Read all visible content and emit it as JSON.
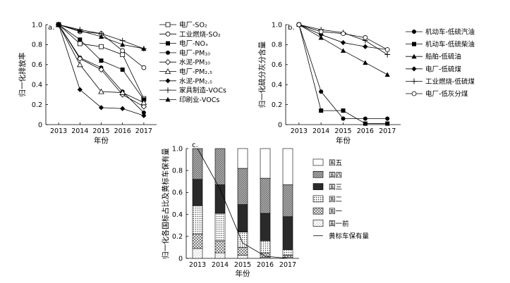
{
  "chart_data": [
    {
      "panel": "a.",
      "type": "line",
      "title": "",
      "xlabel": "年份",
      "ylabel": "归一化排放率",
      "x": [
        2013,
        2014,
        2015,
        2016,
        2017
      ],
      "xlim": [
        2012.4,
        2017.6
      ],
      "ylim": [
        0,
        1.0
      ],
      "yticks": [
        0,
        0.2,
        0.4,
        0.6,
        0.8,
        1.0
      ],
      "ytick_labels": [
        "0",
        "0.2",
        "0.4",
        "0.6",
        "0.8",
        "1.0"
      ],
      "legend_position": "right",
      "series": [
        {
          "name": "电厂-SO₂",
          "marker": "square-open",
          "values": [
            1.0,
            0.81,
            0.78,
            0.7,
            0.26
          ]
        },
        {
          "name": "工业燃烧-SO₂",
          "marker": "circle-open",
          "values": [
            1.0,
            0.93,
            0.91,
            0.74,
            0.57
          ]
        },
        {
          "name": "电厂-NOₓ",
          "marker": "square-filled",
          "values": [
            1.0,
            0.85,
            0.64,
            0.55,
            0.25
          ]
        },
        {
          "name": "电厂-PM₁₀",
          "marker": "circle-filled",
          "values": [
            1.0,
            0.67,
            0.57,
            0.33,
            0.12
          ]
        },
        {
          "name": "水泥-PM₁₀",
          "marker": "diamond-open",
          "values": [
            1.0,
            0.66,
            0.55,
            0.3,
            0.18
          ]
        },
        {
          "name": "电厂-PM₂.₅",
          "marker": "triangle-open",
          "values": [
            1.0,
            0.6,
            0.33,
            0.32,
            0.22
          ]
        },
        {
          "name": "水泥-PM₂.₅",
          "marker": "diamond-filled",
          "values": [
            1.0,
            0.35,
            0.17,
            0.16,
            0.09
          ]
        },
        {
          "name": "家具制造-VOCs",
          "marker": "plus",
          "values": [
            1.0,
            0.95,
            0.91,
            0.84,
            0.76
          ]
        },
        {
          "name": "印刷业-VOCs",
          "marker": "triangle-filled",
          "values": [
            1.0,
            0.94,
            0.88,
            0.8,
            0.76
          ]
        }
      ]
    },
    {
      "panel": "b.",
      "type": "line",
      "title": "",
      "xlabel": "年份",
      "ylabel": "归一化硫分灰分含量",
      "x": [
        2013,
        2014,
        2015,
        2016,
        2017
      ],
      "xlim": [
        2012.4,
        2017.6
      ],
      "ylim": [
        0,
        1.0
      ],
      "yticks": [
        0,
        0.2,
        0.4,
        0.6,
        0.8,
        1.0
      ],
      "ytick_labels": [
        "0",
        "0.2",
        "0.4",
        "0.6",
        "0.8",
        "1.0"
      ],
      "legend_position": "right",
      "series": [
        {
          "name": "机动车-低硫汽油",
          "marker": "circle-filled",
          "values": [
            1.0,
            0.33,
            0.06,
            0.06,
            0.06
          ]
        },
        {
          "name": "机动车-低硫柴油",
          "marker": "square-filled",
          "values": [
            1.0,
            0.14,
            0.14,
            0.01,
            0.01
          ]
        },
        {
          "name": "船舶-低硫油",
          "marker": "triangle-filled",
          "values": [
            1.0,
            0.87,
            0.74,
            0.62,
            0.5
          ]
        },
        {
          "name": "电厂-低硫煤",
          "marker": "diamond-filled",
          "values": [
            1.0,
            0.9,
            0.82,
            0.78,
            0.75
          ]
        },
        {
          "name": "工业燃烧-低硫煤",
          "marker": "plus",
          "values": [
            1.0,
            0.95,
            0.92,
            0.84,
            0.7
          ]
        },
        {
          "name": "电厂-低灰分煤",
          "marker": "circle-open",
          "values": [
            1.0,
            0.93,
            0.91,
            0.87,
            0.75
          ]
        }
      ]
    },
    {
      "panel": "c.",
      "type": "bar",
      "stacked": true,
      "title": "",
      "xlabel": "年份",
      "ylabel": "归一化各国标占比及黄标车保有量",
      "categories": [
        "2013",
        "2014",
        "2015",
        "2016",
        "2017"
      ],
      "ylim": [
        0,
        1.0
      ],
      "yticks": [
        0,
        0.2,
        0.4,
        0.6,
        0.8,
        1.0
      ],
      "ytick_labels": [
        "0",
        "0.2",
        "0.4",
        "0.6",
        "0.8",
        "1.0"
      ],
      "legend_position": "right",
      "series": [
        {
          "name": "国一前",
          "pattern": "light-dots",
          "values": [
            0.09,
            0.05,
            0.03,
            0.01,
            0.01
          ]
        },
        {
          "name": "国一",
          "pattern": "crosshatch",
          "values": [
            0.13,
            0.11,
            0.07,
            0.04,
            0.02
          ]
        },
        {
          "name": "国二",
          "pattern": "dense-dots",
          "values": [
            0.26,
            0.25,
            0.14,
            0.11,
            0.05
          ]
        },
        {
          "name": "国三",
          "pattern": "solid-dark",
          "values": [
            0.24,
            0.26,
            0.25,
            0.25,
            0.3
          ]
        },
        {
          "name": "国四",
          "pattern": "diagonal-hatch",
          "values": [
            0.28,
            0.33,
            0.33,
            0.32,
            0.29
          ]
        },
        {
          "name": "国五",
          "pattern": "white",
          "values": [
            0.0,
            0.0,
            0.18,
            0.27,
            0.33
          ]
        }
      ],
      "line_series": {
        "name": "黄标车保有量",
        "values": [
          1.0,
          0.63,
          0.14,
          0.02,
          0.0
        ]
      }
    }
  ]
}
